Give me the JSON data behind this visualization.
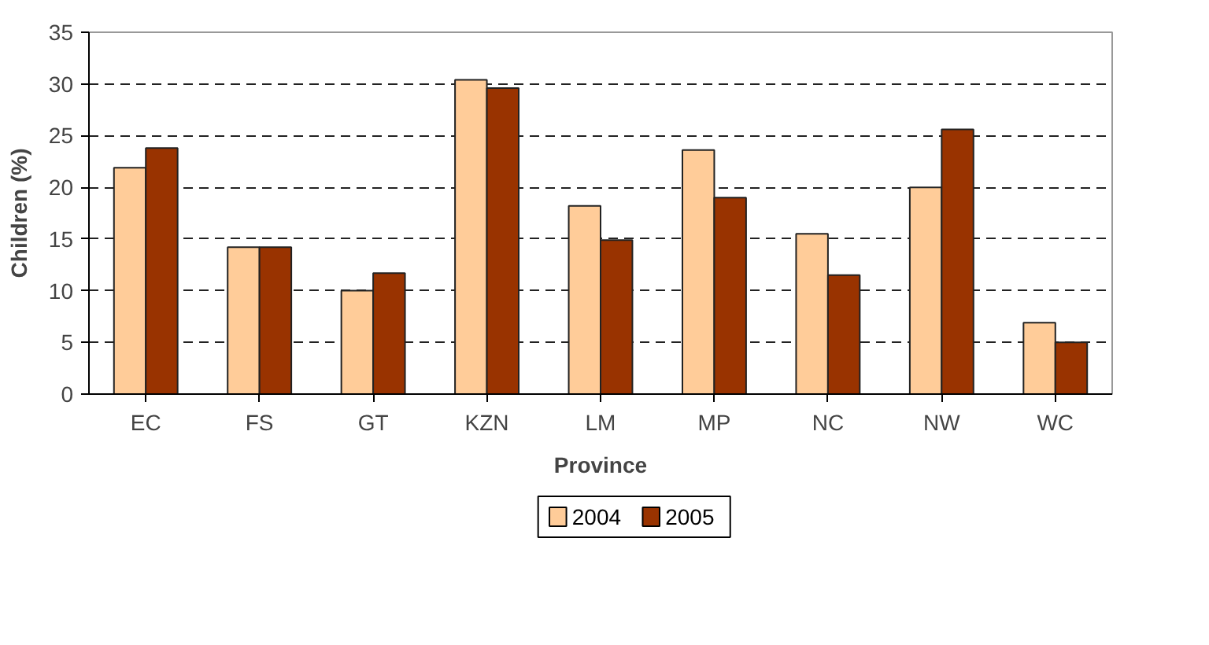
{
  "chart_data": {
    "type": "bar",
    "xlabel": "Province",
    "ylabel": "Children (%)",
    "categories": [
      "EC",
      "FS",
      "GT",
      "KZN",
      "LM",
      "MP",
      "NC",
      "NW",
      "WC"
    ],
    "series": [
      {
        "name": "2004",
        "color": "#ffcc99",
        "values": [
          21.9,
          14.2,
          10.0,
          30.4,
          18.2,
          23.6,
          15.5,
          20.0,
          6.9
        ]
      },
      {
        "name": "2005",
        "color": "#993300",
        "values": [
          23.8,
          14.2,
          11.7,
          29.6,
          14.9,
          19.0,
          11.5,
          25.6,
          5.0
        ]
      }
    ],
    "ylim": [
      0,
      35
    ],
    "yticks": [
      0,
      5,
      10,
      15,
      20,
      25,
      30,
      35
    ],
    "grid": "y",
    "legend": "bottom"
  }
}
